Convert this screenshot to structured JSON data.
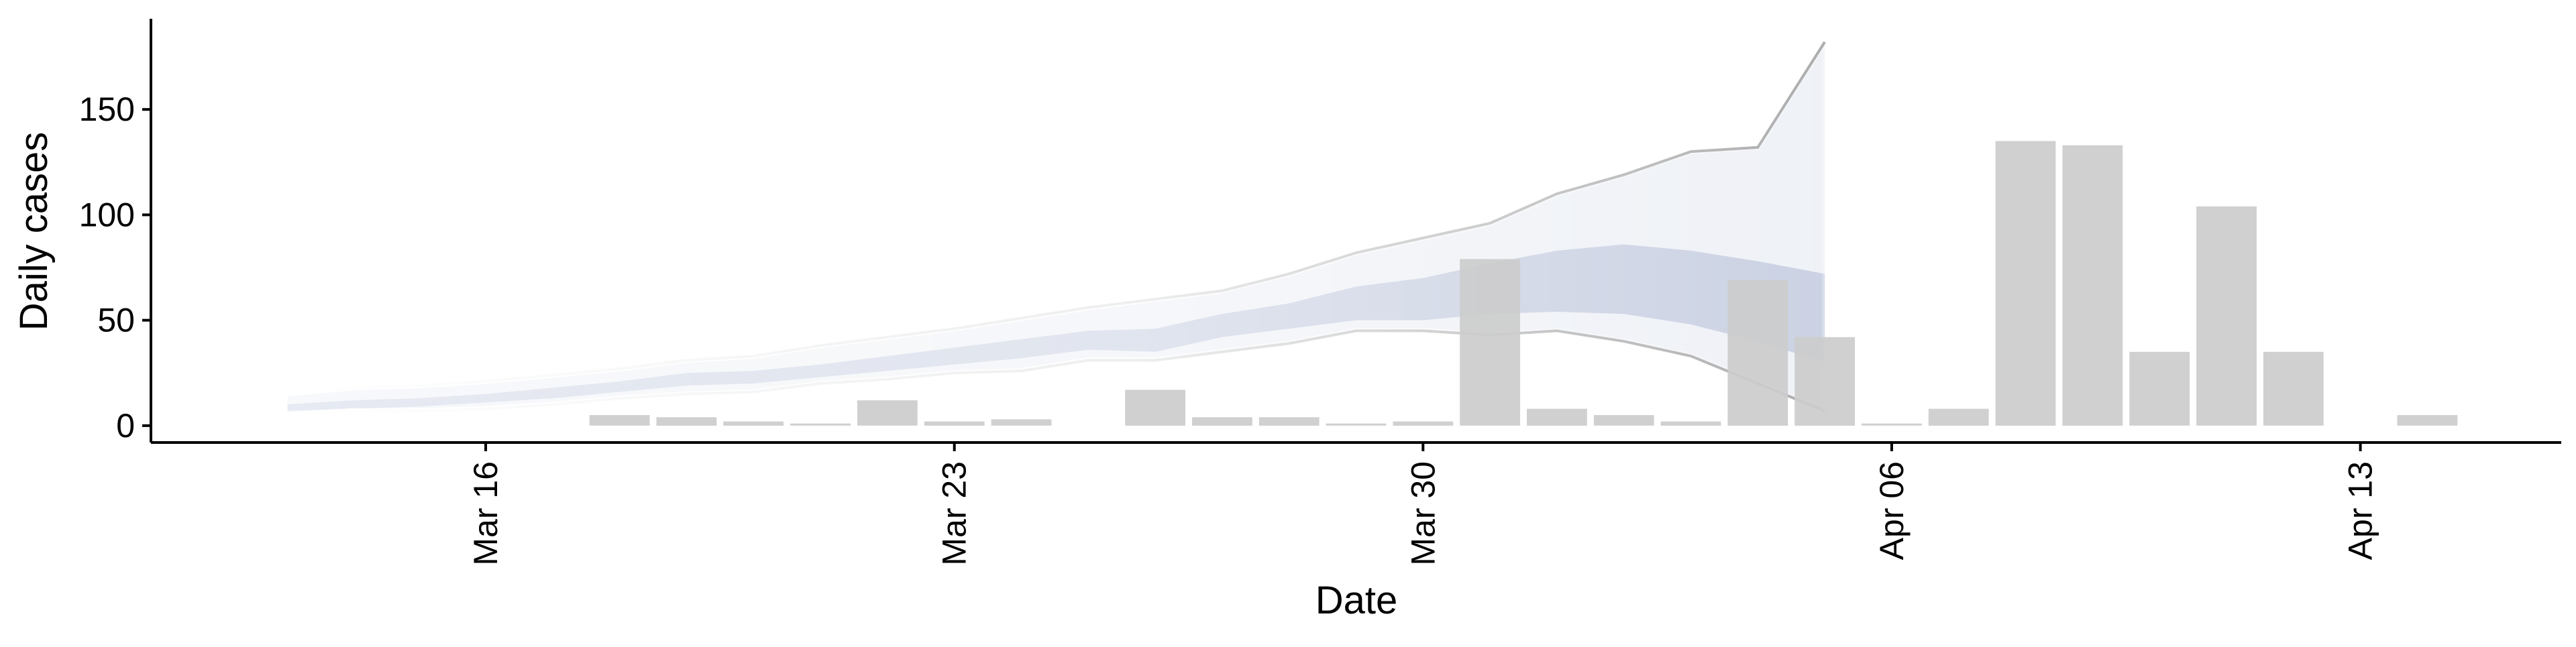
{
  "chart_data": {
    "type": "bar",
    "xlabel": "Date",
    "ylabel": "Daily cases",
    "ylim": [
      -8,
      193
    ],
    "xlim": [
      "2020-03-11",
      "2020-04-16"
    ],
    "x_ticks": [
      {
        "date": "2020-03-16",
        "label": "Mar 16"
      },
      {
        "date": "2020-03-23",
        "label": "Mar 23"
      },
      {
        "date": "2020-03-30",
        "label": "Mar 30"
      },
      {
        "date": "2020-04-06",
        "label": "Apr 06"
      },
      {
        "date": "2020-04-13",
        "label": "Apr 13"
      }
    ],
    "y_ticks": [
      0,
      50,
      100,
      150
    ],
    "grid": false,
    "colors": {
      "bars": "#cccccc",
      "band_outer": "#dde1ec",
      "band_inner": "#b4bdd5",
      "band_edge": "#7f7f7f"
    },
    "bars": [
      {
        "date": "2020-03-18",
        "value": 5
      },
      {
        "date": "2020-03-19",
        "value": 4
      },
      {
        "date": "2020-03-20",
        "value": 2
      },
      {
        "date": "2020-03-21",
        "value": 1
      },
      {
        "date": "2020-03-22",
        "value": 12
      },
      {
        "date": "2020-03-23",
        "value": 2
      },
      {
        "date": "2020-03-24",
        "value": 3
      },
      {
        "date": "2020-03-26",
        "value": 17
      },
      {
        "date": "2020-03-27",
        "value": 4
      },
      {
        "date": "2020-03-28",
        "value": 4
      },
      {
        "date": "2020-03-29",
        "value": 1
      },
      {
        "date": "2020-03-30",
        "value": 2
      },
      {
        "date": "2020-03-31",
        "value": 79
      },
      {
        "date": "2020-04-01",
        "value": 8
      },
      {
        "date": "2020-04-02",
        "value": 5
      },
      {
        "date": "2020-04-03",
        "value": 2
      },
      {
        "date": "2020-04-04",
        "value": 69
      },
      {
        "date": "2020-04-05",
        "value": 42
      },
      {
        "date": "2020-04-06",
        "value": 1
      },
      {
        "date": "2020-04-07",
        "value": 8
      },
      {
        "date": "2020-04-08",
        "value": 135
      },
      {
        "date": "2020-04-09",
        "value": 133
      },
      {
        "date": "2020-04-10",
        "value": 35
      },
      {
        "date": "2020-04-11",
        "value": 104
      },
      {
        "date": "2020-04-12",
        "value": 35
      },
      {
        "date": "2020-04-14",
        "value": 5
      }
    ],
    "band": {
      "dates": [
        "2020-03-13",
        "2020-03-14",
        "2020-03-15",
        "2020-03-16",
        "2020-03-17",
        "2020-03-18",
        "2020-03-19",
        "2020-03-20",
        "2020-03-21",
        "2020-03-22",
        "2020-03-23",
        "2020-03-24",
        "2020-03-25",
        "2020-03-26",
        "2020-03-27",
        "2020-03-28",
        "2020-03-29",
        "2020-03-30",
        "2020-03-31",
        "2020-04-01",
        "2020-04-02",
        "2020-04-03",
        "2020-04-04",
        "2020-04-05"
      ],
      "outer_upper": [
        15,
        18,
        19,
        21,
        24,
        27,
        31,
        33,
        38,
        42,
        46,
        51,
        56,
        60,
        64,
        72,
        82,
        89,
        96,
        110,
        119,
        130,
        132,
        182
      ],
      "outer_lower": [
        5,
        7,
        7,
        8,
        10,
        13,
        15,
        16,
        20,
        22,
        25,
        26,
        31,
        31,
        35,
        39,
        45,
        45,
        43,
        45,
        40,
        33,
        20,
        7
      ],
      "inner_upper": [
        10,
        12,
        13,
        15,
        18,
        21,
        25,
        26,
        29,
        33,
        37,
        41,
        45,
        46,
        53,
        58,
        66,
        70,
        77,
        83,
        86,
        83,
        78,
        72
      ],
      "inner_lower": [
        7,
        8,
        9,
        11,
        13,
        16,
        19,
        20,
        23,
        26,
        29,
        32,
        36,
        35,
        42,
        46,
        50,
        50,
        53,
        54,
        53,
        48,
        40,
        30
      ]
    }
  }
}
